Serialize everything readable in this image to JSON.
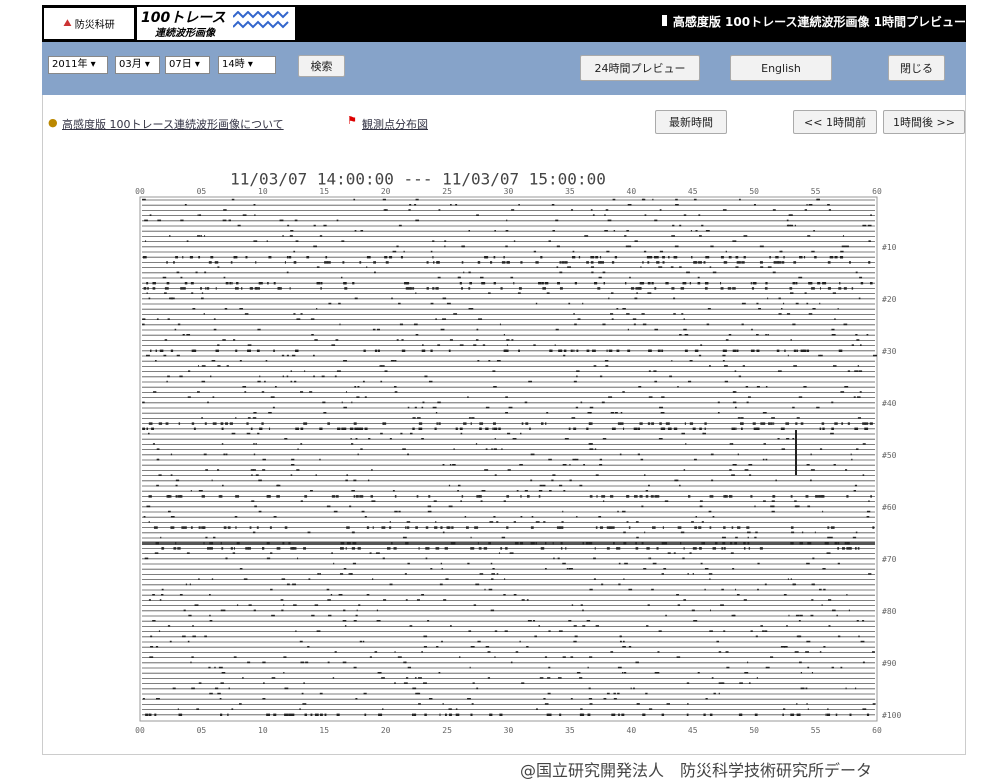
{
  "header": {
    "logo_text": "防災科研",
    "banner_line1": "100トレース",
    "banner_line2": "連続波形画像",
    "title": "高感度版 100トレース連続波形画像 1時間プレビュー"
  },
  "toolbar": {
    "selects": [
      "2011年",
      "03月",
      "07日",
      "14時"
    ],
    "search": "検索",
    "preview24": "24時間プレビュー",
    "english": "English",
    "close": "閉じる"
  },
  "links": {
    "about": "高感度版 100トレース連続波形画像について",
    "map": "観測点分布図",
    "latest": "最新時間",
    "prev": "<< 1時間前",
    "next": "1時間後 >>"
  },
  "plot": {
    "time_range": "11/03/07 14:00:00 --- 11/03/07 15:00:00",
    "x_ticks": [
      "00",
      "05",
      "10",
      "15",
      "20",
      "25",
      "30",
      "35",
      "40",
      "45",
      "50",
      "55",
      "60"
    ],
    "trace_labels": [
      "#10",
      "#20",
      "#30",
      "#40",
      "#50",
      "#60",
      "#70",
      "#80",
      "#90",
      "#100"
    ]
  },
  "footer": "@国立研究開発法人　防災科学技術研究所データ"
}
